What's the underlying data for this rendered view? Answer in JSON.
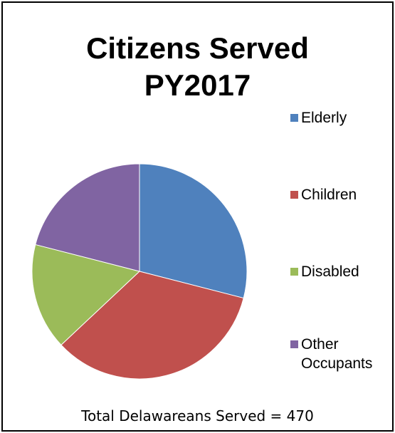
{
  "chart_data": {
    "type": "pie",
    "title": "Citizens Served PY2017",
    "title_lines": [
      "Citizens Served",
      "PY2017"
    ],
    "categories": [
      "Elderly",
      "Children",
      "Disabled",
      "Other Occupants"
    ],
    "values": [
      29,
      34,
      16,
      21
    ],
    "colors": [
      "#4F81BD",
      "#C0504D",
      "#9BBB59",
      "#8064A2"
    ],
    "legend_position": "right",
    "footnote": "Total Delawareans  Served = 470"
  }
}
